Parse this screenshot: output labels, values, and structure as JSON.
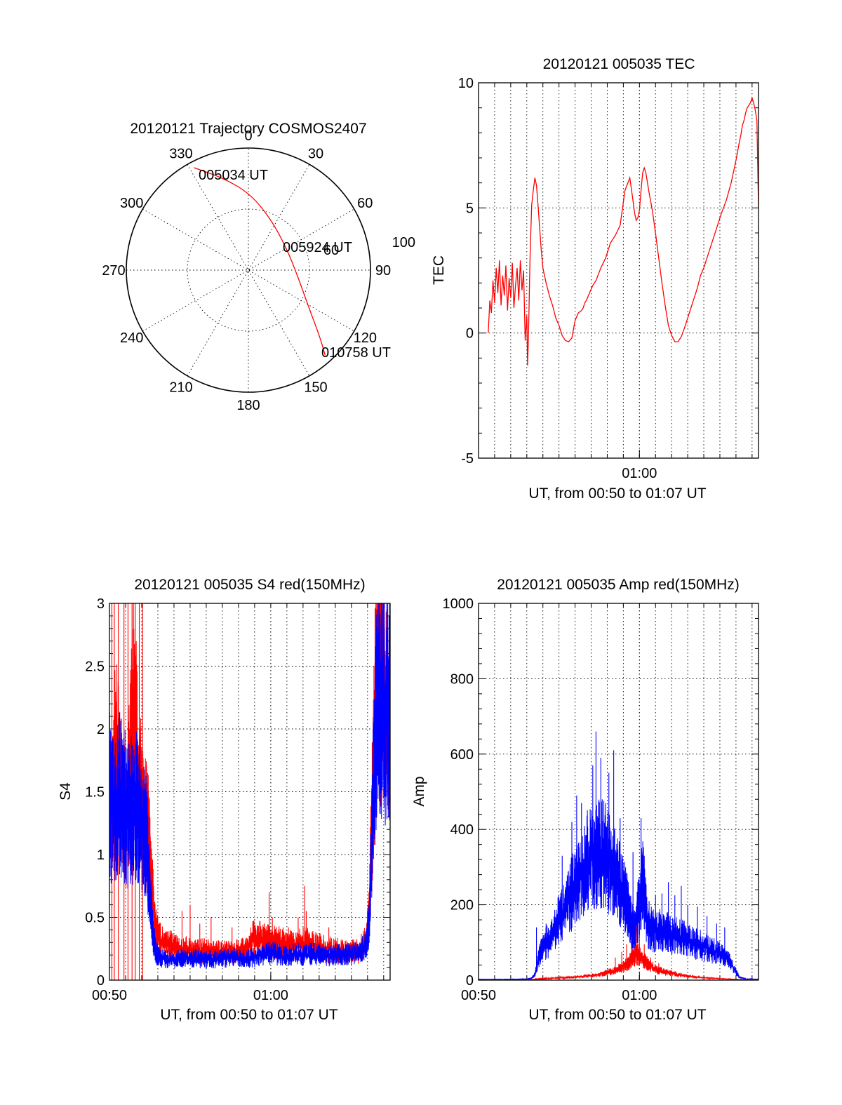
{
  "chart_data": [
    {
      "id": "trajectory",
      "type": "polar",
      "title": "20120121 Trajectory COSMOS2407",
      "angle_labels": [
        "0",
        "30",
        "60",
        "90",
        "120",
        "150",
        "180",
        "210",
        "240",
        "270",
        "300",
        "330"
      ],
      "radius_labels": [
        "60",
        "100"
      ],
      "radius_max": 100,
      "start_label": "005034 UT",
      "mid_label": "005924 UT",
      "end_label": "010758 UT",
      "track_color": "#ff0000",
      "track": [
        {
          "az": 332,
          "r": 95
        },
        {
          "az": 345,
          "r": 78
        },
        {
          "az": 2,
          "r": 62
        },
        {
          "az": 25,
          "r": 45
        },
        {
          "az": 60,
          "r": 36
        },
        {
          "az": 95,
          "r": 40
        },
        {
          "az": 120,
          "r": 56
        },
        {
          "az": 133,
          "r": 80
        },
        {
          "az": 138,
          "r": 94
        }
      ]
    },
    {
      "id": "tec",
      "type": "line",
      "title": "20120121 005035 TEC",
      "ylabel": "TEC",
      "xlabel": "UT, from 00:50 to 01:07 UT",
      "xlim": [
        0,
        17.4
      ],
      "ylim": [
        -5,
        10
      ],
      "yticks": [
        -5,
        0,
        5,
        10
      ],
      "ytick_labels": [
        "-5",
        "0",
        "5",
        "10"
      ],
      "xtick_labels": [
        {
          "t": 10,
          "label": "01:00"
        }
      ],
      "color": "#ff0000",
      "series": [
        {
          "x": [
            0.6,
            0.7,
            0.8,
            0.9,
            1.0,
            1.1,
            1.2,
            1.3,
            1.4,
            1.5,
            1.6,
            1.7,
            1.8,
            1.9,
            2.0,
            2.1,
            2.2,
            2.3,
            2.4,
            2.5,
            2.6,
            2.7,
            2.8,
            2.9,
            3.0,
            3.05,
            3.1,
            3.2,
            3.3,
            3.4,
            3.5,
            3.6,
            3.7,
            3.8,
            3.9,
            4.0,
            4.2,
            4.4,
            4.6,
            4.8,
            5.0,
            5.2,
            5.4,
            5.6,
            5.8,
            6.0,
            6.2,
            6.4,
            6.5,
            6.6,
            6.7,
            6.9,
            7.1,
            7.3,
            7.6,
            7.9,
            8.2,
            8.5,
            8.8,
            9.1,
            9.4,
            9.6,
            9.7,
            9.8,
            9.9,
            10.0,
            10.1,
            10.2,
            10.3,
            10.4,
            10.5,
            10.6,
            10.8,
            11.0,
            11.2,
            11.4,
            11.6,
            11.8,
            12.0,
            12.2,
            12.4,
            12.6,
            12.8,
            13.0,
            13.2,
            13.4,
            13.6,
            13.8,
            14.0,
            14.2,
            14.5,
            14.8,
            15.1,
            15.4,
            15.7,
            16.0,
            16.2,
            16.3,
            16.4,
            16.5,
            16.6,
            16.7,
            16.8,
            16.9,
            17.0,
            17.1,
            17.2,
            17.3,
            17.4
          ],
          "y": [
            0,
            1.3,
            0.8,
            2.1,
            1.2,
            2.6,
            1.6,
            2.9,
            1.1,
            2.3,
            1.5,
            2.7,
            0.9,
            2.2,
            1.4,
            2.8,
            1.0,
            1.9,
            2.6,
            1.3,
            2.9,
            1.7,
            2.5,
            -0.3,
            0.7,
            -1.3,
            -0.2,
            3.0,
            5.1,
            5.7,
            6.2,
            5.9,
            5.1,
            4.2,
            3.3,
            2.6,
            2.0,
            1.5,
            1.1,
            0.6,
            0.3,
            -0.1,
            -0.3,
            -0.35,
            -0.2,
            0.5,
            0.8,
            0.9,
            1.0,
            1.2,
            1.3,
            1.6,
            1.9,
            2.1,
            2.6,
            3.0,
            3.6,
            3.9,
            4.3,
            5.7,
            6.2,
            5.3,
            4.8,
            4.5,
            4.6,
            4.9,
            5.7,
            6.4,
            6.6,
            6.4,
            6.0,
            5.6,
            4.9,
            4.0,
            3.0,
            2.0,
            1.1,
            0.3,
            -0.1,
            -0.35,
            -0.35,
            -0.15,
            0.2,
            0.6,
            1.0,
            1.4,
            1.8,
            2.3,
            2.6,
            3.0,
            3.6,
            4.2,
            4.8,
            5.3,
            6.0,
            6.9,
            7.6,
            7.9,
            8.3,
            8.5,
            8.8,
            9.0,
            9.1,
            9.2,
            9.4,
            9.2,
            8.9,
            8.5,
            5.0
          ]
        }
      ]
    },
    {
      "id": "s4",
      "type": "line",
      "title": "20120121 005035 S4 red(150MHz)",
      "ylabel": "S4",
      "xlabel": "UT, from 00:50 to 01:07 UT",
      "xlim": [
        0,
        17.4
      ],
      "ylim": [
        0,
        3
      ],
      "yticks": [
        0,
        0.5,
        1,
        1.5,
        2,
        2.5,
        3
      ],
      "ytick_labels": [
        "0",
        "0.5",
        "1",
        "1.5",
        "2",
        "2.5",
        "3"
      ],
      "xtick_labels": [
        {
          "t": 0,
          "label": "00:50"
        },
        {
          "t": 10,
          "label": "01:00"
        }
      ],
      "series": [
        {
          "color": "#ff0000",
          "x": [
            0,
            0.5,
            1.0,
            1.5,
            2.0,
            2.4,
            2.6,
            2.8,
            3.0,
            3.5,
            4.0,
            4.5,
            5.0,
            5.5,
            6.0,
            6.5,
            7.0,
            7.5,
            8.0,
            8.5,
            9.0,
            9.5,
            10.0,
            10.5,
            11.0,
            11.5,
            12.0,
            12.5,
            13.0,
            13.5,
            14.0,
            14.5,
            15.0,
            15.5,
            15.9,
            16.1,
            16.3,
            16.5,
            16.7,
            17.0,
            17.4
          ],
          "y": [
            1.5,
            1.8,
            1.2,
            2.1,
            1.4,
            1.2,
            0.8,
            0.45,
            0.35,
            0.28,
            0.27,
            0.25,
            0.24,
            0.23,
            0.23,
            0.22,
            0.22,
            0.22,
            0.23,
            0.24,
            0.35,
            0.32,
            0.3,
            0.3,
            0.28,
            0.27,
            0.3,
            0.28,
            0.26,
            0.24,
            0.24,
            0.22,
            0.22,
            0.24,
            0.3,
            0.5,
            1.4,
            2.2,
            2.6,
            2.4,
            2.0
          ],
          "spikes": [
            {
              "x": 0.15,
              "y": 3.0
            },
            {
              "x": 0.3,
              "y": 3.0
            },
            {
              "x": 0.55,
              "y": 3.0
            },
            {
              "x": 0.9,
              "y": 3.0
            },
            {
              "x": 1.15,
              "y": 3.0
            },
            {
              "x": 1.4,
              "y": 3.0
            },
            {
              "x": 1.6,
              "y": 3.0
            },
            {
              "x": 1.85,
              "y": 3.0
            },
            {
              "x": 2.05,
              "y": 3.0
            },
            {
              "x": 4.5,
              "y": 0.55
            },
            {
              "x": 5.0,
              "y": 0.6
            },
            {
              "x": 5.6,
              "y": 0.45
            },
            {
              "x": 6.3,
              "y": 0.5
            },
            {
              "x": 7.6,
              "y": 0.42
            },
            {
              "x": 9.6,
              "y": 0.45
            },
            {
              "x": 9.9,
              "y": 0.7
            },
            {
              "x": 10.1,
              "y": 0.5
            },
            {
              "x": 11.1,
              "y": 0.42
            },
            {
              "x": 11.7,
              "y": 0.5
            },
            {
              "x": 12.1,
              "y": 0.75
            },
            {
              "x": 12.2,
              "y": 0.55
            },
            {
              "x": 13.6,
              "y": 0.42
            }
          ]
        },
        {
          "color": "#0000ff",
          "x": [
            0,
            0.3,
            0.6,
            0.9,
            1.2,
            1.5,
            1.8,
            2.1,
            2.3,
            2.5,
            2.7,
            2.9,
            3.1,
            3.5,
            4.0,
            4.5,
            5.0,
            5.5,
            6.0,
            6.5,
            7.0,
            7.5,
            8.0,
            8.5,
            9.0,
            9.5,
            10.0,
            10.5,
            11.0,
            11.5,
            12.0,
            12.5,
            13.0,
            13.5,
            14.0,
            14.5,
            15.0,
            15.5,
            15.9,
            16.1,
            16.3,
            16.5,
            16.7,
            17.0,
            17.4
          ],
          "y": [
            1.4,
            1.3,
            1.5,
            1.4,
            1.3,
            1.4,
            1.35,
            1.25,
            1.1,
            0.7,
            0.35,
            0.22,
            0.18,
            0.17,
            0.16,
            0.17,
            0.18,
            0.17,
            0.16,
            0.17,
            0.17,
            0.18,
            0.18,
            0.17,
            0.18,
            0.2,
            0.22,
            0.2,
            0.19,
            0.21,
            0.2,
            0.21,
            0.2,
            0.19,
            0.2,
            0.2,
            0.21,
            0.22,
            0.28,
            0.45,
            1.2,
            2.0,
            2.4,
            2.2,
            2.1
          ]
        }
      ]
    },
    {
      "id": "amp",
      "type": "line",
      "title": "20120121 005035 Amp red(150MHz)",
      "ylabel": "Amp",
      "xlabel": "UT, from 00:50 to 01:07 UT",
      "xlim": [
        0,
        17.4
      ],
      "ylim": [
        0,
        1000
      ],
      "yticks": [
        0,
        200,
        400,
        600,
        800,
        1000
      ],
      "ytick_labels": [
        "0",
        "200",
        "400",
        "600",
        "800",
        "1000"
      ],
      "xtick_labels": [
        {
          "t": 0,
          "label": "00:50"
        },
        {
          "t": 10,
          "label": "01:00"
        }
      ],
      "series": [
        {
          "color": "#0000ff",
          "x": [
            0,
            1.5,
            3.0,
            3.3,
            3.5,
            3.8,
            4.0,
            4.5,
            5.0,
            5.5,
            6.0,
            6.5,
            7.0,
            7.5,
            8.0,
            8.5,
            9.0,
            9.3,
            9.5,
            9.7,
            10.0,
            10.2,
            10.5,
            11.0,
            11.5,
            12.0,
            12.5,
            13.0,
            13.5,
            14.0,
            14.5,
            15.0,
            15.5,
            15.9,
            16.2,
            16.6,
            17.4
          ],
          "y": [
            2,
            2,
            3,
            5,
            15,
            70,
            90,
            110,
            160,
            200,
            250,
            300,
            330,
            340,
            320,
            280,
            230,
            190,
            150,
            130,
            200,
            270,
            140,
            130,
            130,
            120,
            115,
            105,
            95,
            90,
            80,
            70,
            55,
            30,
            8,
            3,
            2
          ],
          "spikes": [
            {
              "x": 3.6,
              "y": 140
            },
            {
              "x": 4.2,
              "y": 150
            },
            {
              "x": 5.2,
              "y": 330
            },
            {
              "x": 5.8,
              "y": 420
            },
            {
              "x": 6.1,
              "y": 490
            },
            {
              "x": 6.4,
              "y": 470
            },
            {
              "x": 6.6,
              "y": 340
            },
            {
              "x": 7.1,
              "y": 570
            },
            {
              "x": 7.3,
              "y": 660
            },
            {
              "x": 7.6,
              "y": 590
            },
            {
              "x": 8.1,
              "y": 550
            },
            {
              "x": 8.4,
              "y": 610
            },
            {
              "x": 8.8,
              "y": 430
            },
            {
              "x": 9.3,
              "y": 240
            },
            {
              "x": 9.6,
              "y": 340
            },
            {
              "x": 9.9,
              "y": 260
            },
            {
              "x": 10.1,
              "y": 430
            },
            {
              "x": 10.3,
              "y": 330
            },
            {
              "x": 10.6,
              "y": 210
            },
            {
              "x": 11.0,
              "y": 225
            },
            {
              "x": 11.4,
              "y": 230
            },
            {
              "x": 11.8,
              "y": 260
            },
            {
              "x": 12.2,
              "y": 225
            },
            {
              "x": 12.6,
              "y": 250
            },
            {
              "x": 13.0,
              "y": 200
            },
            {
              "x": 13.6,
              "y": 195
            },
            {
              "x": 14.2,
              "y": 170
            },
            {
              "x": 14.8,
              "y": 150
            },
            {
              "x": 15.3,
              "y": 140
            }
          ]
        },
        {
          "color": "#ff0000",
          "x": [
            0,
            3.0,
            3.5,
            4.0,
            5.0,
            6.0,
            7.0,
            7.5,
            8.0,
            8.5,
            9.0,
            9.3,
            9.6,
            9.9,
            10.2,
            10.5,
            11.0,
            11.5,
            12.0,
            12.5,
            13.0,
            14.0,
            15.0,
            16.0,
            17.4
          ],
          "y": [
            0,
            1,
            2,
            4,
            6,
            8,
            12,
            15,
            20,
            26,
            35,
            45,
            60,
            70,
            55,
            42,
            30,
            22,
            18,
            14,
            10,
            6,
            4,
            2,
            1
          ],
          "spikes": [
            {
              "x": 8.5,
              "y": 60
            },
            {
              "x": 8.9,
              "y": 75
            },
            {
              "x": 9.2,
              "y": 95
            },
            {
              "x": 9.5,
              "y": 115
            },
            {
              "x": 9.8,
              "y": 145
            },
            {
              "x": 10.0,
              "y": 120
            },
            {
              "x": 10.3,
              "y": 95
            },
            {
              "x": 10.7,
              "y": 60
            },
            {
              "x": 11.2,
              "y": 45
            }
          ]
        }
      ]
    }
  ]
}
